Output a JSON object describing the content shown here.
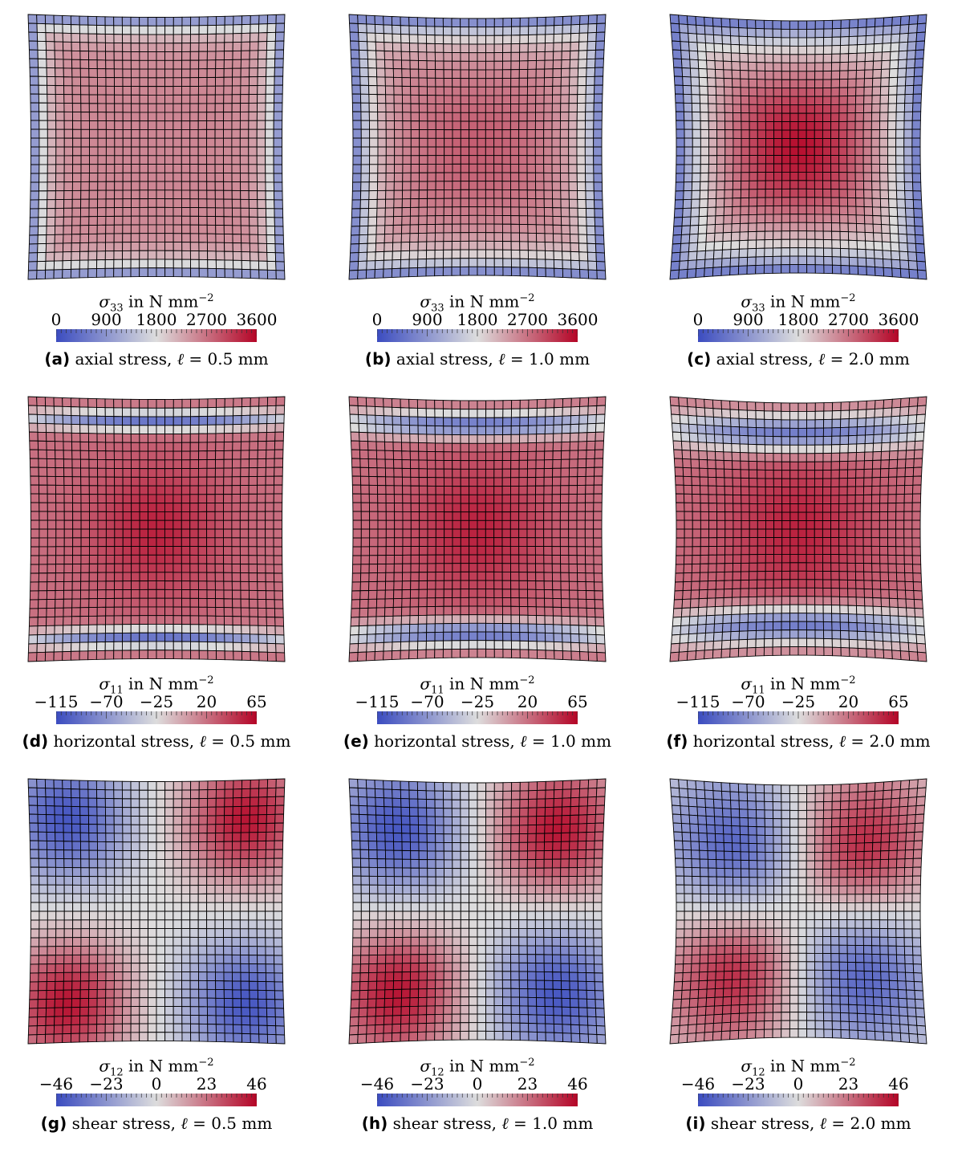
{
  "figure": {
    "colormap": {
      "low": "#3b4cc0",
      "mid": "#dddddd",
      "high": "#b40426"
    },
    "mesh_line_color": "#000000",
    "panels": [
      {
        "id": "a",
        "label": "(a)",
        "stress_name": "axial stress",
        "ell": "0.5",
        "ell_unit": "mm",
        "symbol": "σ",
        "component": "33",
        "unit_text": "N mm",
        "unit_exp": "−2",
        "ticks": [
          "0",
          "900",
          "1800",
          "2700",
          "3600"
        ],
        "range": [
          0,
          3600
        ],
        "field": "axial",
        "length_scale": 0.5
      },
      {
        "id": "b",
        "label": "(b)",
        "stress_name": "axial stress",
        "ell": "1.0",
        "ell_unit": "mm",
        "symbol": "σ",
        "component": "33",
        "unit_text": "N mm",
        "unit_exp": "−2",
        "ticks": [
          "0",
          "900",
          "1800",
          "2700",
          "3600"
        ],
        "range": [
          0,
          3600
        ],
        "field": "axial",
        "length_scale": 1.0
      },
      {
        "id": "c",
        "label": "(c)",
        "stress_name": "axial stress",
        "ell": "2.0",
        "ell_unit": "mm",
        "symbol": "σ",
        "component": "33",
        "unit_text": "N mm",
        "unit_exp": "−2",
        "ticks": [
          "0",
          "900",
          "1800",
          "2700",
          "3600"
        ],
        "range": [
          0,
          3600
        ],
        "field": "axial",
        "length_scale": 2.0
      },
      {
        "id": "d",
        "label": "(d)",
        "stress_name": "horizontal stress",
        "ell": "0.5",
        "ell_unit": "mm",
        "symbol": "σ",
        "component": "11",
        "unit_text": "N mm",
        "unit_exp": "−2",
        "ticks": [
          "−115",
          "−70",
          "−25",
          "20",
          "65"
        ],
        "range": [
          -115,
          65
        ],
        "field": "horizontal",
        "length_scale": 0.5
      },
      {
        "id": "e",
        "label": "(e)",
        "stress_name": "horizontal stress",
        "ell": "1.0",
        "ell_unit": "mm",
        "symbol": "σ",
        "component": "11",
        "unit_text": "N mm",
        "unit_exp": "−2",
        "ticks": [
          "−115",
          "−70",
          "−25",
          "20",
          "65"
        ],
        "range": [
          -115,
          65
        ],
        "field": "horizontal",
        "length_scale": 1.0
      },
      {
        "id": "f",
        "label": "(f)",
        "stress_name": "horizontal stress",
        "ell": "2.0",
        "ell_unit": "mm",
        "symbol": "σ",
        "component": "11",
        "unit_text": "N mm",
        "unit_exp": "−2",
        "ticks": [
          "−115",
          "−70",
          "−25",
          "20",
          "65"
        ],
        "range": [
          -115,
          65
        ],
        "field": "horizontal",
        "length_scale": 2.0
      },
      {
        "id": "g",
        "label": "(g)",
        "stress_name": "shear stress",
        "ell": "0.5",
        "ell_unit": "mm",
        "symbol": "σ",
        "component": "12",
        "unit_text": "N mm",
        "unit_exp": "−2",
        "ticks": [
          "−46",
          "−23",
          "0",
          "23",
          "46"
        ],
        "range": [
          -46,
          46
        ],
        "field": "shear",
        "length_scale": 0.5
      },
      {
        "id": "h",
        "label": "(h)",
        "stress_name": "shear stress",
        "ell": "1.0",
        "ell_unit": "mm",
        "symbol": "σ",
        "component": "12",
        "unit_text": "N mm",
        "unit_exp": "−2",
        "ticks": [
          "−46",
          "−23",
          "0",
          "23",
          "46"
        ],
        "range": [
          -46,
          46
        ],
        "field": "shear",
        "length_scale": 1.0
      },
      {
        "id": "i",
        "label": "(i)",
        "stress_name": "shear stress",
        "ell": "2.0",
        "ell_unit": "mm",
        "symbol": "σ",
        "component": "12",
        "unit_text": "N mm",
        "unit_exp": "−2",
        "ticks": [
          "−46",
          "−23",
          "0",
          "23",
          "46"
        ],
        "range": [
          -46,
          46
        ],
        "field": "shear",
        "length_scale": 2.0
      }
    ]
  }
}
